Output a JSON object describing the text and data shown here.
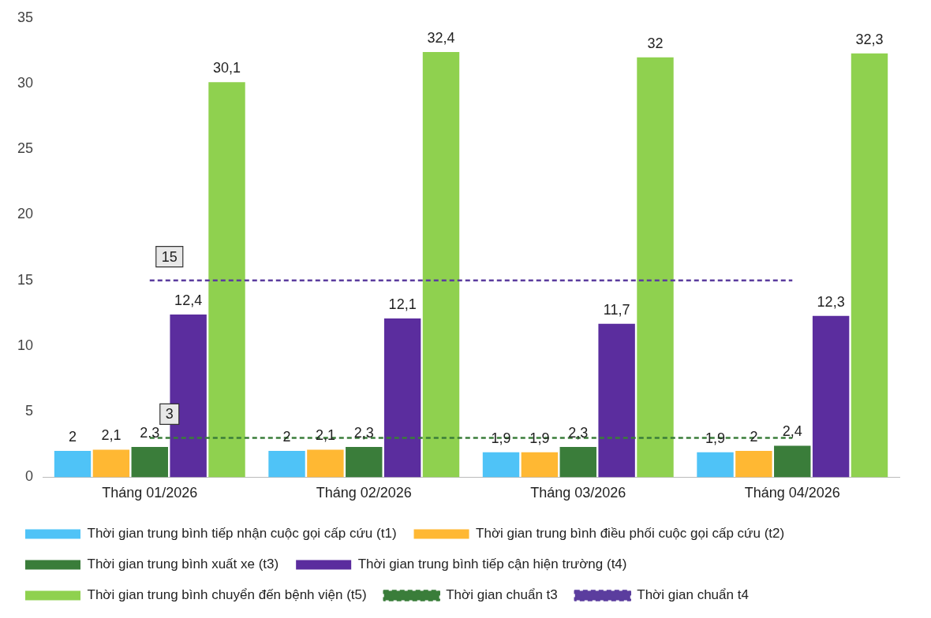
{
  "chart_data": {
    "type": "bar",
    "categories": [
      "Tháng 01/2026",
      "Tháng 02/2026",
      "Tháng 03/2026",
      "Tháng 04/2026"
    ],
    "ylim": [
      0,
      35
    ],
    "yticks": [
      0,
      5,
      10,
      15,
      20,
      25,
      30,
      35
    ],
    "grid": false,
    "legend": "bottom",
    "marker": "none",
    "series": [
      {
        "name": "Thời gian trung bình tiếp nhận cuộc gọi cấp cứu (t1)",
        "color": "#4fc3f7",
        "values": [
          2,
          2,
          1.9,
          1.9
        ],
        "value_labels": [
          "2",
          "2",
          "1,9",
          "1,9"
        ]
      },
      {
        "name": "Thời gian trung bình điều phối cuộc gọi cấp cứu (t2)",
        "color": "#ffb833",
        "values": [
          2.1,
          2.1,
          1.9,
          2
        ],
        "value_labels": [
          "2,1",
          "2,1",
          "1,9",
          "2"
        ]
      },
      {
        "name": "Thời gian trung bình xuất xe (t3)",
        "color": "#3a7d3a",
        "values": [
          2.3,
          2.3,
          2.3,
          2.4
        ],
        "value_labels": [
          "2.3",
          "2,3",
          "2,3",
          "2,4"
        ]
      },
      {
        "name": "Thời gian trung bình tiếp cận hiện trường (t4)",
        "color": "#5b2d9e",
        "values": [
          12.4,
          12.1,
          11.7,
          12.3
        ],
        "value_labels": [
          "12,4",
          "12,1",
          "11,7",
          "12,3"
        ]
      },
      {
        "name": "Thời gian trung bình chuyển đến bệnh viện (t5)",
        "color": "#8fd14f",
        "values": [
          30.1,
          32.4,
          32,
          32.3
        ],
        "value_labels": [
          "30,1",
          "32,4",
          "32",
          "32,3"
        ]
      },
      {
        "name": "Thời gian chuẩn t3",
        "type": "line",
        "line_style": "dashed",
        "color": "#3a7d3a",
        "values": [
          3,
          3,
          3,
          3
        ],
        "value_labels": [
          "3",
          null,
          null,
          null
        ]
      },
      {
        "name": "Thời gian chuẩn t4",
        "type": "line",
        "line_style": "dashed",
        "color": "#5b3d9e",
        "values": [
          15,
          15,
          15,
          15
        ],
        "value_labels": [
          "15",
          null,
          null,
          null
        ]
      }
    ]
  }
}
